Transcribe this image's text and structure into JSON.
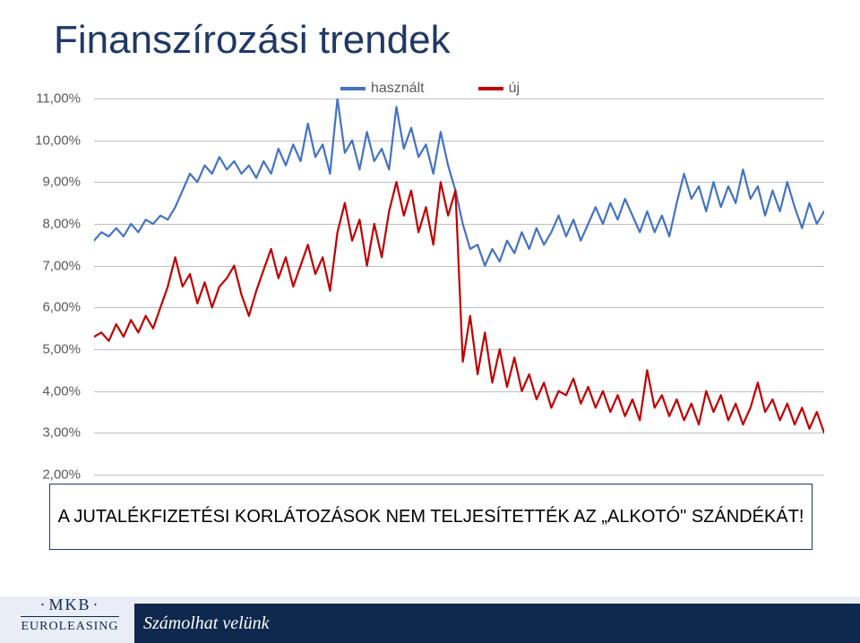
{
  "title": "Finanszírozási trendek",
  "callout": "A JUTALÉKFIZETÉSI KORLÁTOZÁSOK NEM TELJESÍTETTÉK AZ „ALKOTÓ\" SZÁNDÉKÁT!",
  "footer_tagline": "Számolhat velünk",
  "logo": {
    "brand1": "MKB",
    "brand2": "EUROLEASING"
  },
  "chart": {
    "type": "line",
    "ylim": [
      2.0,
      11.0
    ],
    "ytick_step": 1.0,
    "ytick_labels": [
      "2,00%",
      "3,00%",
      "4,00%",
      "5,00%",
      "6,00%",
      "7,00%",
      "8,00%",
      "9,00%",
      "10,00%",
      "11,00%"
    ],
    "grid_color": "#bfbfbf",
    "background_color": "#ffffff",
    "line_width": 2.2,
    "legend": [
      {
        "label": "használt",
        "color": "#4472c4"
      },
      {
        "label": "új",
        "color": "#c00000"
      }
    ],
    "series": {
      "hasznalt": {
        "color": "#4472c4",
        "values": [
          7.6,
          7.8,
          7.7,
          7.9,
          7.7,
          8.0,
          7.8,
          8.1,
          8.0,
          8.2,
          8.1,
          8.4,
          8.8,
          9.2,
          9.0,
          9.4,
          9.2,
          9.6,
          9.3,
          9.5,
          9.2,
          9.4,
          9.1,
          9.5,
          9.2,
          9.8,
          9.4,
          9.9,
          9.5,
          10.4,
          9.6,
          9.9,
          9.2,
          11.0,
          9.7,
          10.0,
          9.3,
          10.2,
          9.5,
          9.8,
          9.3,
          10.8,
          9.8,
          10.3,
          9.6,
          9.9,
          9.2,
          10.2,
          9.4,
          8.8,
          8.0,
          7.4,
          7.5,
          7.0,
          7.4,
          7.1,
          7.6,
          7.3,
          7.8,
          7.4,
          7.9,
          7.5,
          7.8,
          8.2,
          7.7,
          8.1,
          7.6,
          8.0,
          8.4,
          8.0,
          8.5,
          8.1,
          8.6,
          8.2,
          7.8,
          8.3,
          7.8,
          8.2,
          7.7,
          8.5,
          9.2,
          8.6,
          8.9,
          8.3,
          9.0,
          8.4,
          8.9,
          8.5,
          9.3,
          8.6,
          8.9,
          8.2,
          8.8,
          8.3,
          9.0,
          8.4,
          7.9,
          8.5,
          8.0,
          8.3
        ]
      },
      "uj": {
        "color": "#c00000",
        "values": [
          5.3,
          5.4,
          5.2,
          5.6,
          5.3,
          5.7,
          5.4,
          5.8,
          5.5,
          6.0,
          6.5,
          7.2,
          6.5,
          6.8,
          6.1,
          6.6,
          6.0,
          6.5,
          6.7,
          7.0,
          6.3,
          5.8,
          6.4,
          6.9,
          7.4,
          6.7,
          7.2,
          6.5,
          7.0,
          7.5,
          6.8,
          7.2,
          6.4,
          7.8,
          8.5,
          7.6,
          8.1,
          7.0,
          8.0,
          7.2,
          8.3,
          9.0,
          8.2,
          8.8,
          7.8,
          8.4,
          7.5,
          9.0,
          8.2,
          8.8,
          4.7,
          5.8,
          4.4,
          5.4,
          4.2,
          5.0,
          4.1,
          4.8,
          4.0,
          4.4,
          3.8,
          4.2,
          3.6,
          4.0,
          3.9,
          4.3,
          3.7,
          4.1,
          3.6,
          4.0,
          3.5,
          3.9,
          3.4,
          3.8,
          3.3,
          4.5,
          3.6,
          3.9,
          3.4,
          3.8,
          3.3,
          3.7,
          3.2,
          4.0,
          3.5,
          3.9,
          3.3,
          3.7,
          3.2,
          3.6,
          4.2,
          3.5,
          3.8,
          3.3,
          3.7,
          3.2,
          3.6,
          3.1,
          3.5,
          3.0
        ]
      }
    }
  }
}
